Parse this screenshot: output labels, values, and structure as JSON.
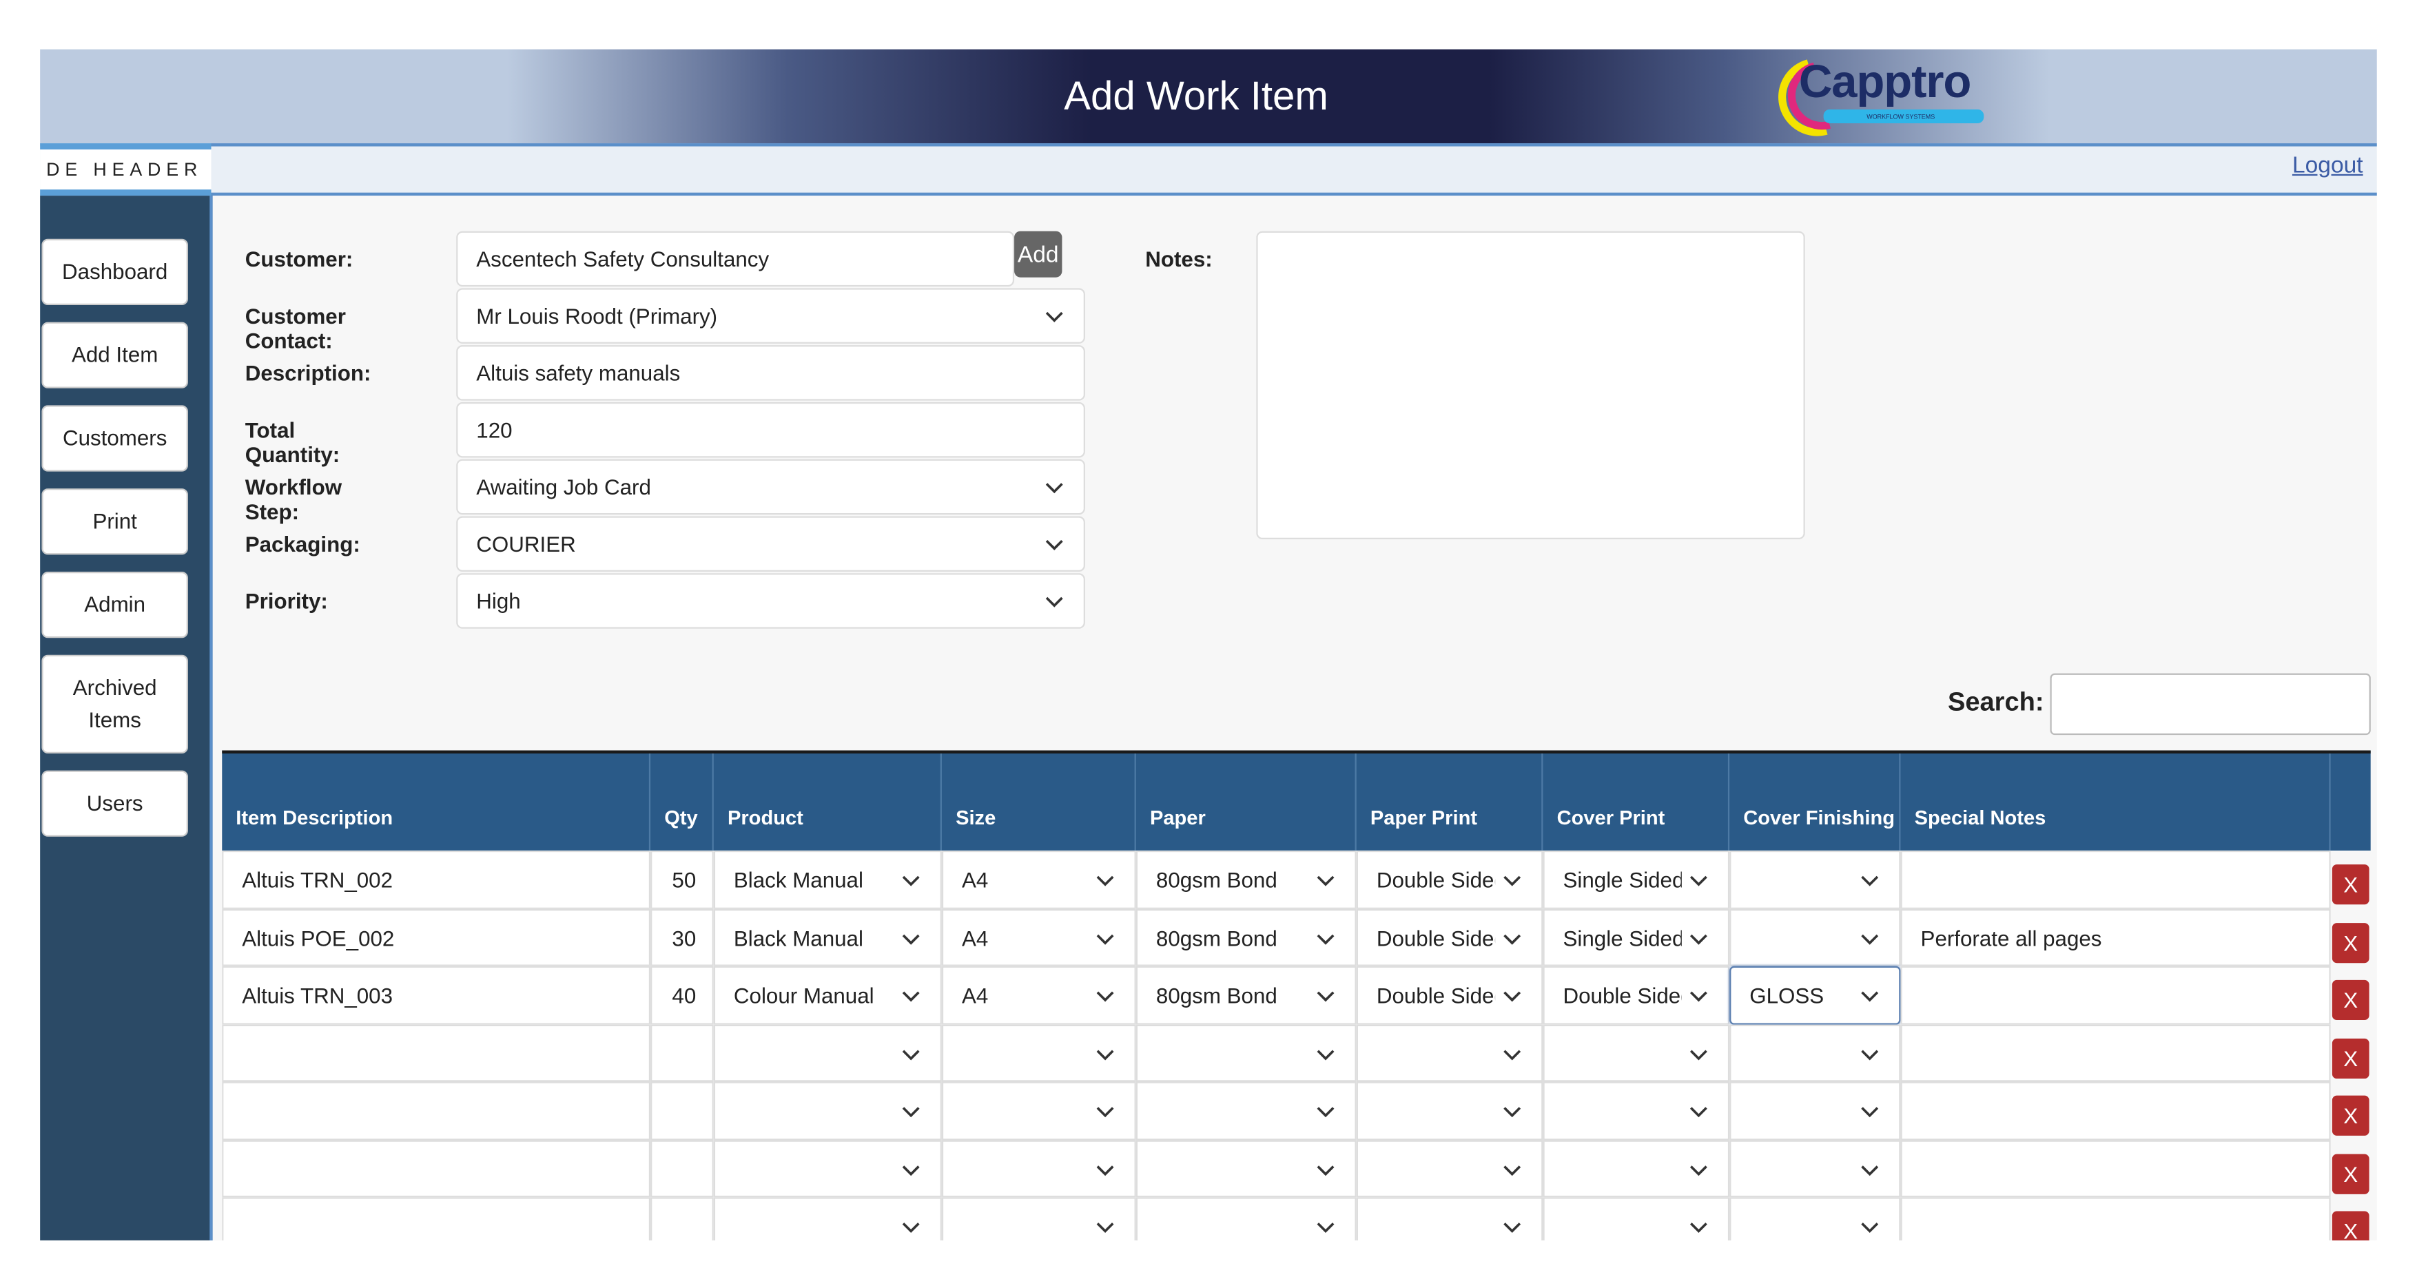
{
  "header": {
    "title": "Add Work Item",
    "logo": "Capptro",
    "logo_tagline": "WORKFLOW SYSTEMS",
    "subheader": "DE HEADER",
    "logout": "Logout"
  },
  "nav": [
    "Dashboard",
    "Add Item",
    "Customers",
    "Print",
    "Admin",
    "Archived Items",
    "Users"
  ],
  "form": {
    "fields": [
      {
        "label": "Customer:",
        "value": "Ascentech Safety Consultancy"
      },
      {
        "label": "Customer Contact:",
        "value": "Mr Louis Roodt (Primary)"
      },
      {
        "label": "Description:",
        "value": "Altuis safety manuals"
      },
      {
        "label": "Total Quantity:",
        "value": "120"
      },
      {
        "label": "Workflow Step:",
        "value": "Awaiting Job Card"
      },
      {
        "label": "Packaging:",
        "value": "COURIER"
      },
      {
        "label": "Priority:",
        "value": "High"
      }
    ],
    "add_button": "Add",
    "notes_label": "Notes:"
  },
  "search_label": "Search:",
  "table": {
    "columns": [
      "Item Description",
      "Qty",
      "Product",
      "Size",
      "Paper",
      "Paper Print",
      "Cover Print",
      "Cover Finishing",
      "Special Notes"
    ],
    "rows": [
      [
        "Altuis TRN_002",
        "50",
        "Black Manual",
        "A4",
        "80gsm Bond",
        "Double Sided",
        "Single Sided",
        null,
        null
      ],
      [
        "Altuis POE_002",
        "30",
        "Black Manual",
        "A4",
        "80gsm Bond",
        "Double Sided",
        "Single Sided",
        null,
        "Perforate all pages"
      ],
      [
        "Altuis TRN_003",
        "40",
        "Colour Manual",
        "A4",
        "80gsm Bond",
        "Double Sided",
        "Double Sided",
        "GLOSS",
        null
      ],
      [
        null,
        null,
        null,
        null,
        null,
        null,
        null,
        null,
        null
      ],
      [
        null,
        null,
        null,
        null,
        null,
        null,
        null,
        null,
        null
      ],
      [
        null,
        null,
        null,
        null,
        null,
        null,
        null,
        null,
        null
      ],
      [
        null,
        null,
        null,
        null,
        null,
        null,
        null,
        null,
        null
      ]
    ],
    "delete_label": "X"
  }
}
